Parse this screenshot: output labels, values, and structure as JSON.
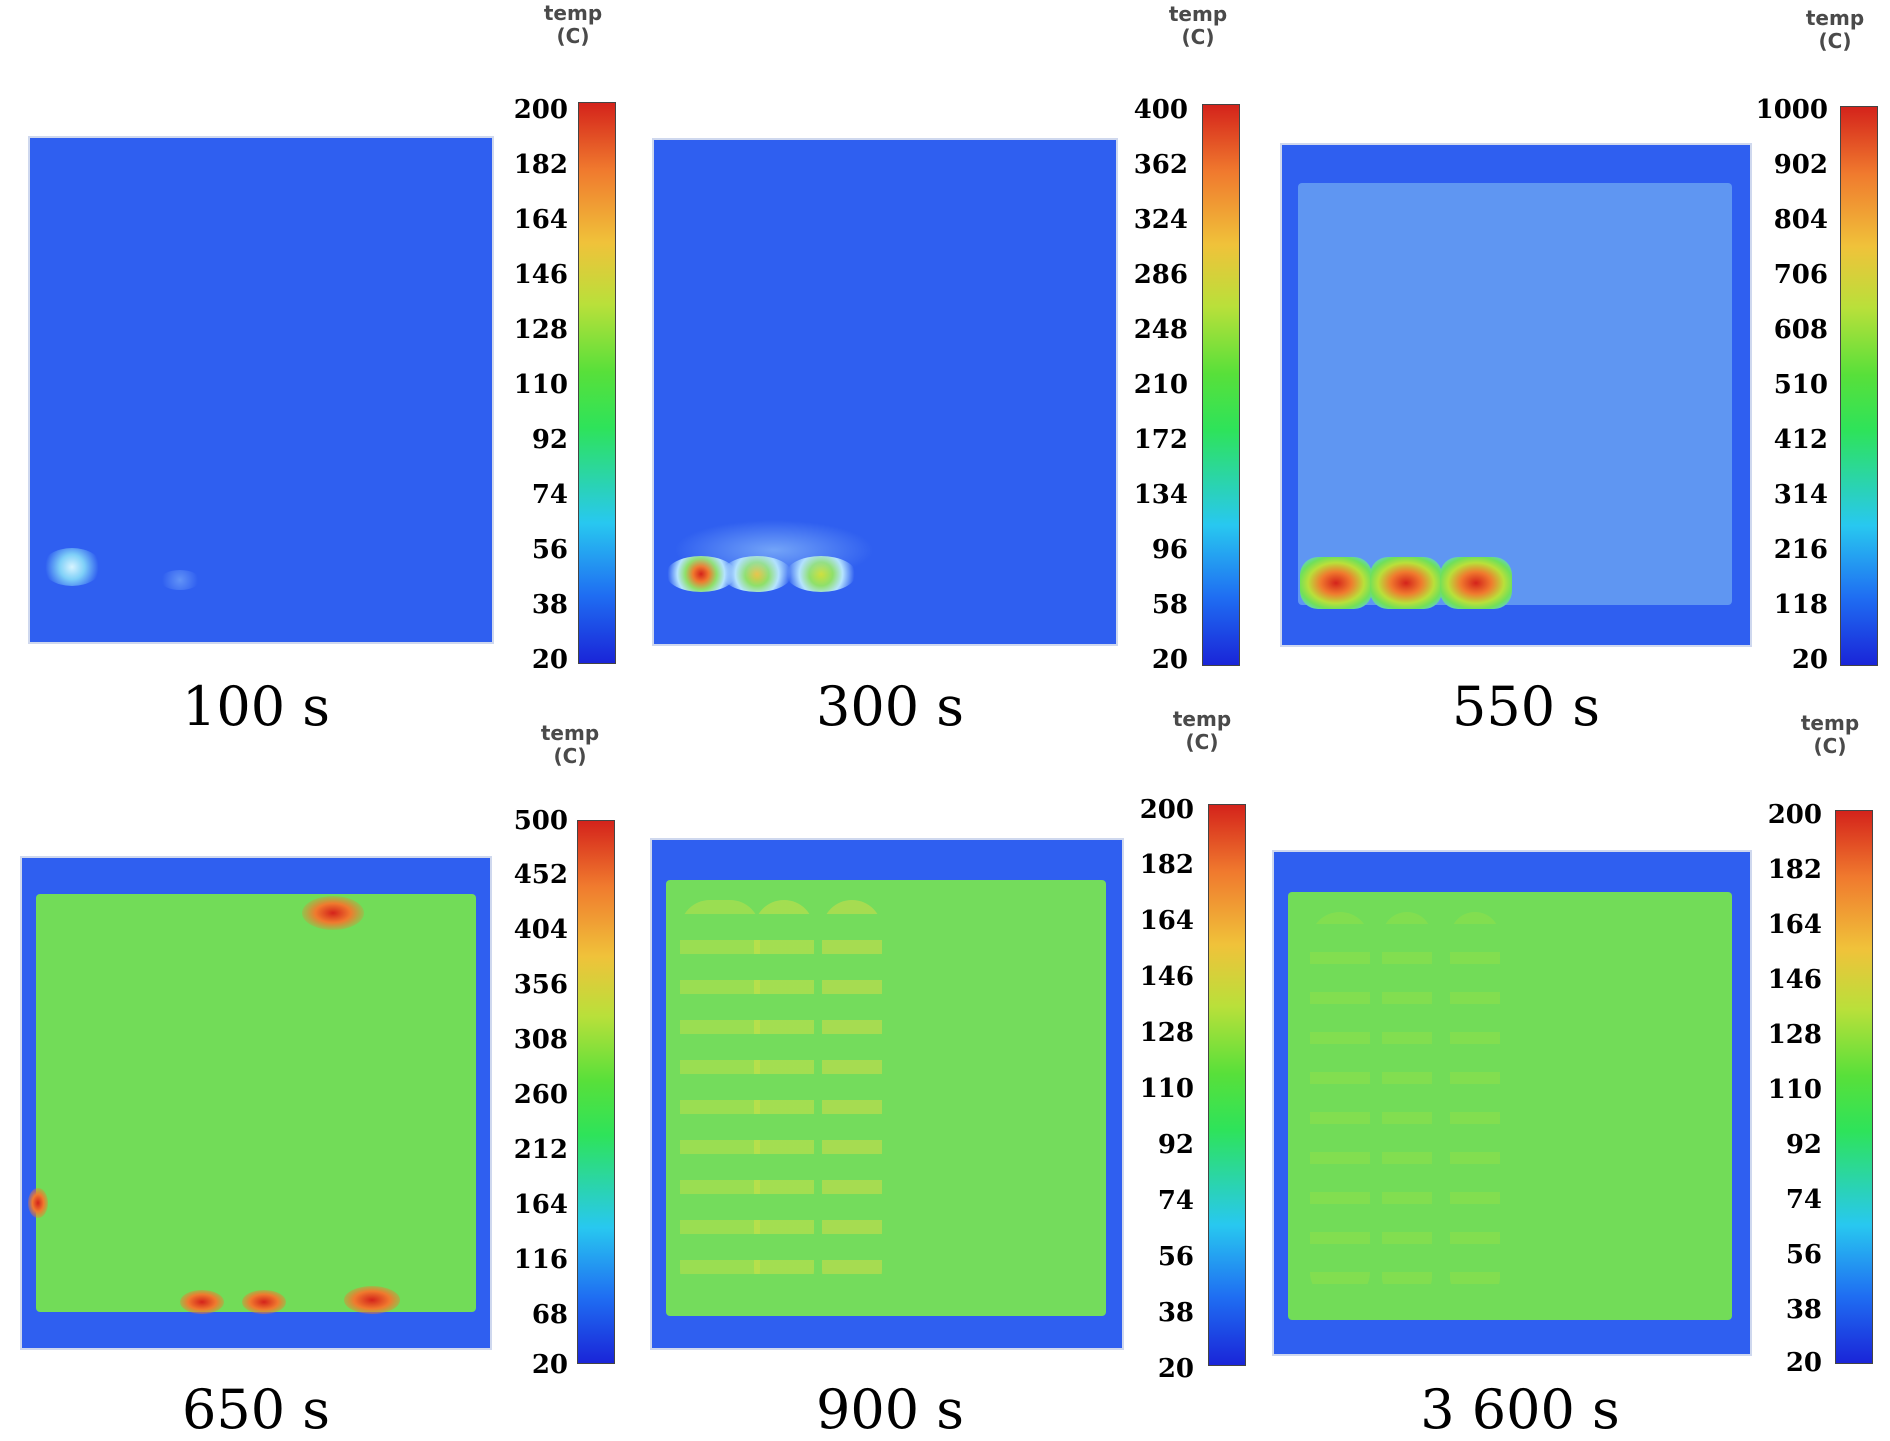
{
  "colors": {
    "cold_blue": "#2f5ff0",
    "mid_green": "#6fe05a",
    "hot_red": "#d4231b",
    "light_cyan": "#5fa0f4"
  },
  "panels": [
    {
      "time_label": "100 s",
      "unit_line1": "temp",
      "unit_line2": "(C)",
      "ticks": [
        "200",
        "182",
        "164",
        "146",
        "128",
        "110",
        "92",
        "74",
        "56",
        "38",
        "20"
      ]
    },
    {
      "time_label": "300 s",
      "unit_line1": "temp",
      "unit_line2": "(C)",
      "ticks": [
        "400",
        "362",
        "324",
        "286",
        "248",
        "210",
        "172",
        "134",
        "96",
        "58",
        "20"
      ]
    },
    {
      "time_label": "550 s",
      "unit_line1": "temp",
      "unit_line2": "(C)",
      "ticks": [
        "1000",
        "902",
        "804",
        "706",
        "608",
        "510",
        "412",
        "314",
        "216",
        "118",
        "20"
      ]
    },
    {
      "time_label": "650 s",
      "unit_line1": "temp",
      "unit_line2": "(C)",
      "ticks": [
        "500",
        "452",
        "404",
        "356",
        "308",
        "260",
        "212",
        "164",
        "116",
        "68",
        "20"
      ]
    },
    {
      "time_label": "900 s",
      "unit_line1": "temp",
      "unit_line2": "(C)",
      "ticks": [
        "200",
        "182",
        "164",
        "146",
        "128",
        "110",
        "92",
        "74",
        "56",
        "38",
        "20"
      ]
    },
    {
      "time_label": "3 600 s",
      "unit_line1": "temp",
      "unit_line2": "(C)",
      "ticks": [
        "200",
        "182",
        "164",
        "146",
        "128",
        "110",
        "92",
        "74",
        "56",
        "38",
        "20"
      ]
    }
  ]
}
